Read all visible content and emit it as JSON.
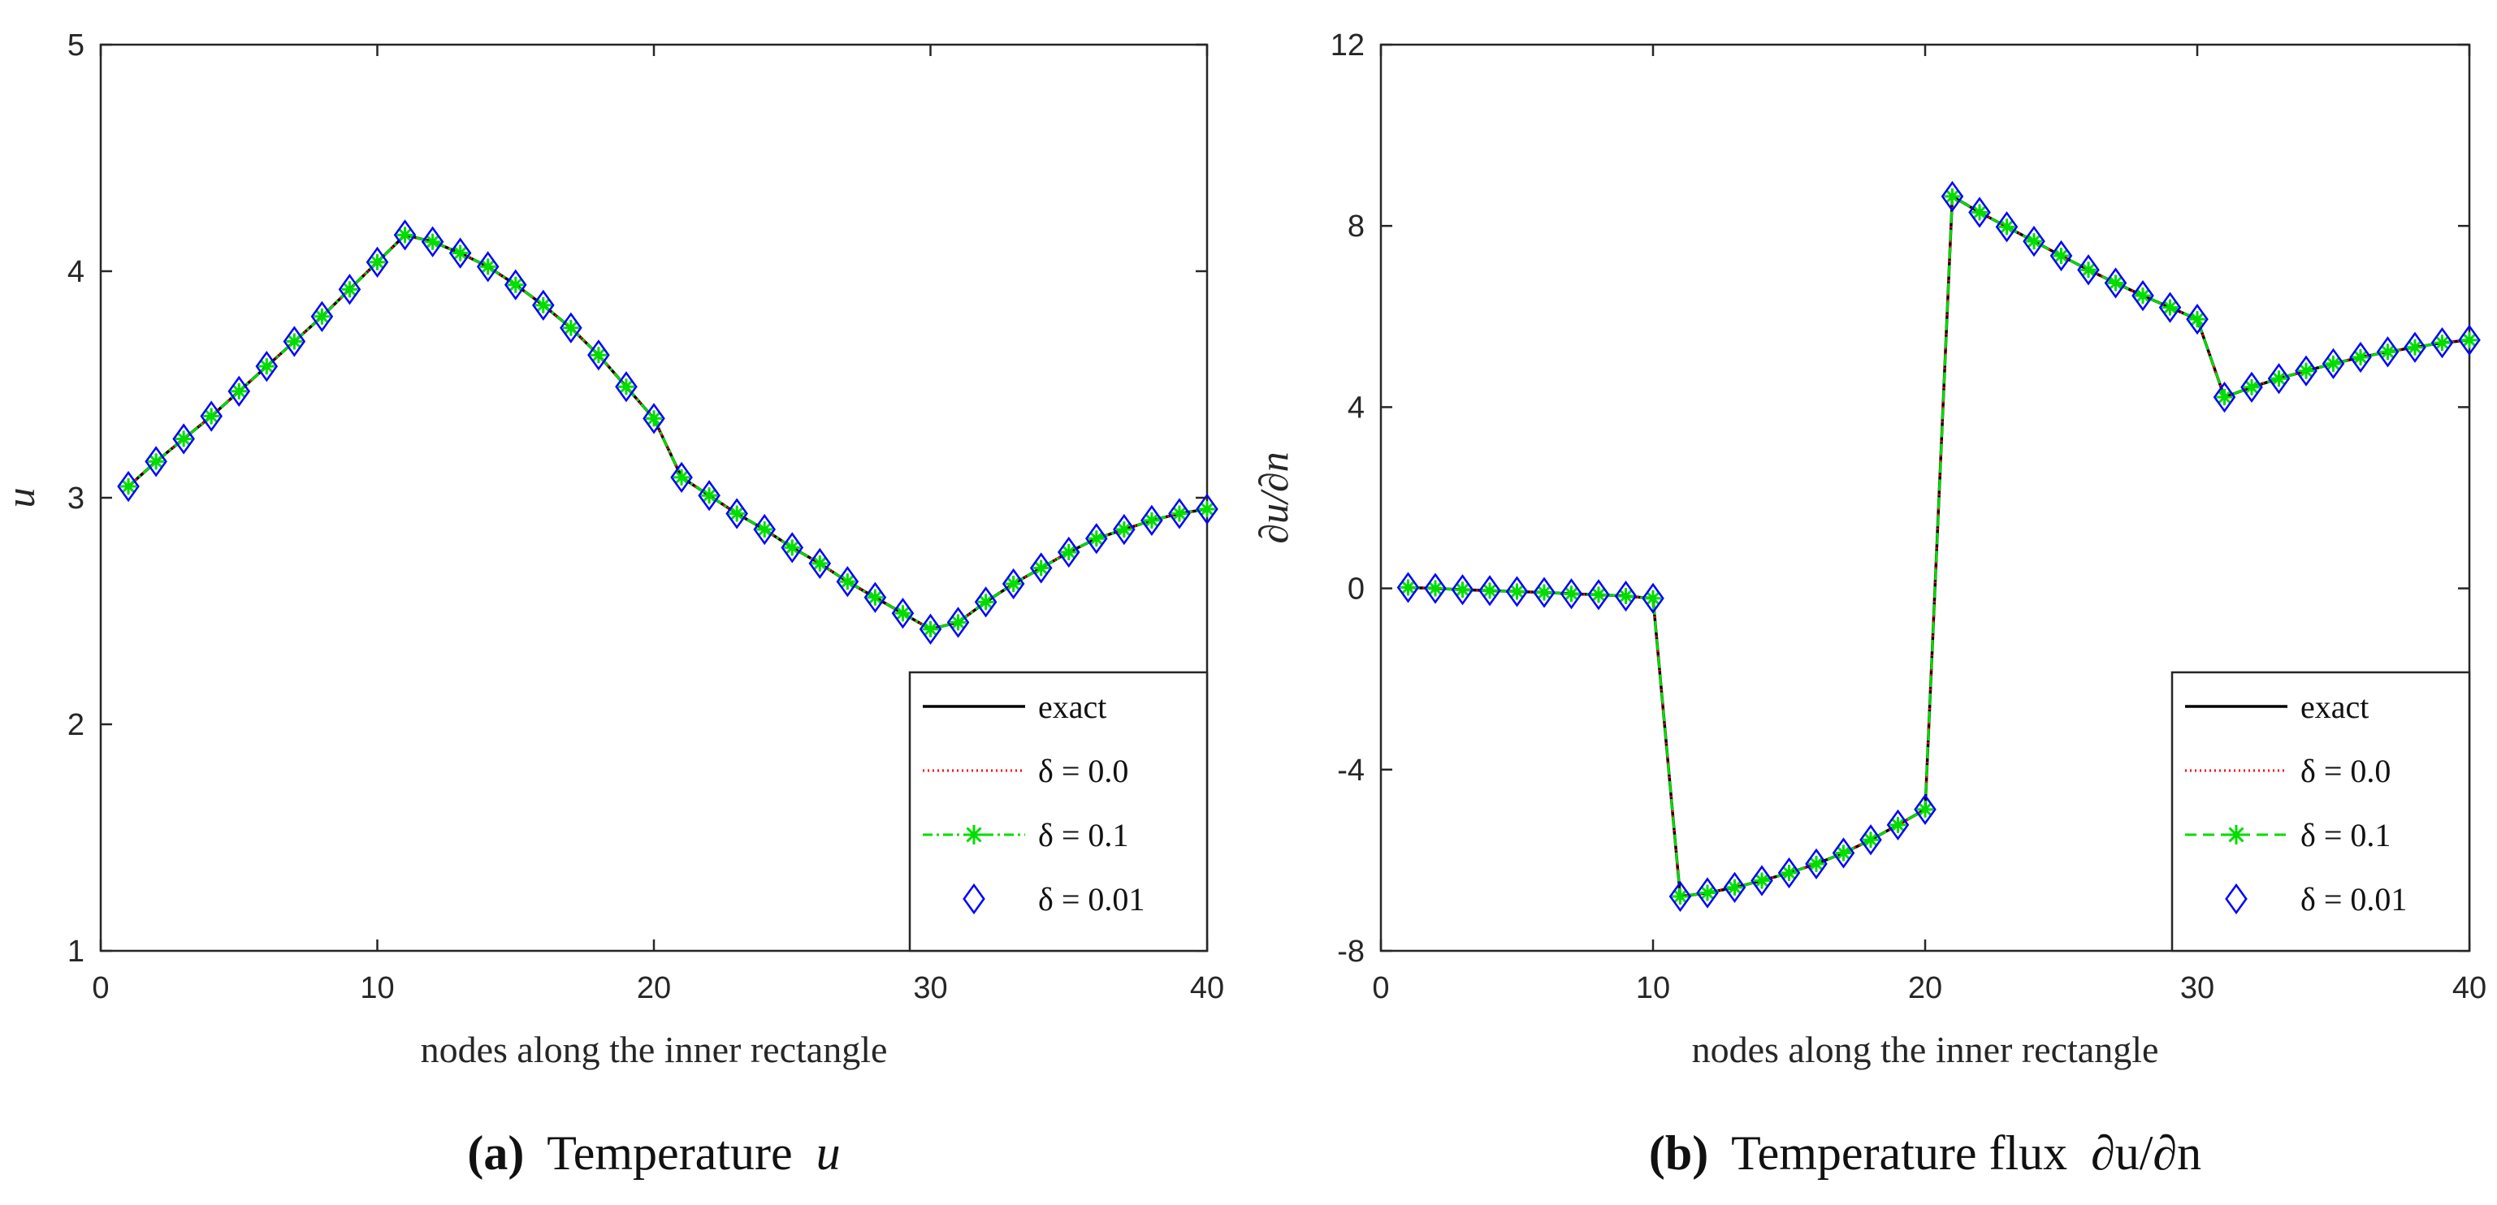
{
  "chart_data": [
    {
      "type": "line",
      "xlabel": "nodes along the inner rectangle",
      "ylabel": "u",
      "xlim": [
        0,
        40
      ],
      "ylim": [
        1,
        5
      ],
      "xticks": [
        "0",
        "10",
        "20",
        "30",
        "40"
      ],
      "yticks": [
        "1",
        "2",
        "3",
        "4",
        "5"
      ],
      "grid": false,
      "legend_position": "bottom-right",
      "caption": {
        "letter": "(a)",
        "text": "Temperature",
        "symbol": "u"
      },
      "x": [
        1,
        2,
        3,
        4,
        5,
        6,
        7,
        8,
        9,
        10,
        11,
        12,
        13,
        14,
        15,
        16,
        17,
        18,
        19,
        20,
        21,
        22,
        23,
        24,
        25,
        26,
        27,
        28,
        29,
        30,
        31,
        32,
        33,
        34,
        35,
        36,
        37,
        38,
        39,
        40
      ],
      "exact": [
        3.05,
        3.16,
        3.26,
        3.36,
        3.47,
        3.58,
        3.69,
        3.8,
        3.92,
        4.04,
        4.16,
        4.13,
        4.08,
        4.02,
        3.94,
        3.85,
        3.75,
        3.63,
        3.49,
        3.35,
        3.09,
        3.01,
        2.93,
        2.86,
        2.78,
        2.71,
        2.63,
        2.56,
        2.49,
        2.42,
        2.45,
        2.54,
        2.62,
        2.69,
        2.76,
        2.82,
        2.86,
        2.9,
        2.93,
        2.95
      ],
      "series": [
        {
          "name": "exact",
          "color": "#000000",
          "style": "solid"
        },
        {
          "name": "δ = 0.0",
          "color": "#ff0000",
          "style": "dotted"
        },
        {
          "name": "δ = 0.1",
          "color": "#00dd00",
          "style": "dashdot-star"
        },
        {
          "name": "δ = 0.01",
          "color": "#0000ff",
          "style": "diamond"
        }
      ]
    },
    {
      "type": "line",
      "xlabel": "nodes along the inner rectangle",
      "ylabel": "∂u/∂n",
      "xlim": [
        0,
        40
      ],
      "ylim": [
        -8,
        12
      ],
      "xticks": [
        "0",
        "10",
        "20",
        "30",
        "40"
      ],
      "yticks": [
        "-8",
        "-4",
        "0",
        "4",
        "8",
        "12"
      ],
      "grid": false,
      "legend_position": "bottom-right",
      "caption": {
        "letter": "(b)",
        "text": "Temperature flux",
        "symbol": "∂u/∂n"
      },
      "x": [
        1,
        2,
        3,
        4,
        5,
        6,
        7,
        8,
        9,
        10,
        11,
        12,
        13,
        14,
        15,
        16,
        17,
        18,
        19,
        20,
        21,
        22,
        23,
        24,
        25,
        26,
        27,
        28,
        29,
        30,
        31,
        32,
        33,
        34,
        35,
        36,
        37,
        38,
        39,
        40
      ],
      "exact": [
        0.02,
        0.0,
        -0.03,
        -0.05,
        -0.07,
        -0.09,
        -0.12,
        -0.14,
        -0.17,
        -0.22,
        -6.8,
        -6.72,
        -6.6,
        -6.45,
        -6.28,
        -6.08,
        -5.84,
        -5.55,
        -5.22,
        -4.88,
        8.65,
        8.3,
        7.98,
        7.66,
        7.34,
        7.03,
        6.74,
        6.46,
        6.2,
        5.94,
        4.22,
        4.44,
        4.63,
        4.8,
        4.96,
        5.1,
        5.22,
        5.32,
        5.42,
        5.48
      ],
      "series": [
        {
          "name": "exact",
          "color": "#000000",
          "style": "solid"
        },
        {
          "name": "δ = 0.0",
          "color": "#ff0000",
          "style": "dotted"
        },
        {
          "name": "δ = 0.1",
          "color": "#00dd00",
          "style": "dashed-star"
        },
        {
          "name": "δ = 0.01",
          "color": "#0000ff",
          "style": "diamond"
        }
      ]
    }
  ]
}
